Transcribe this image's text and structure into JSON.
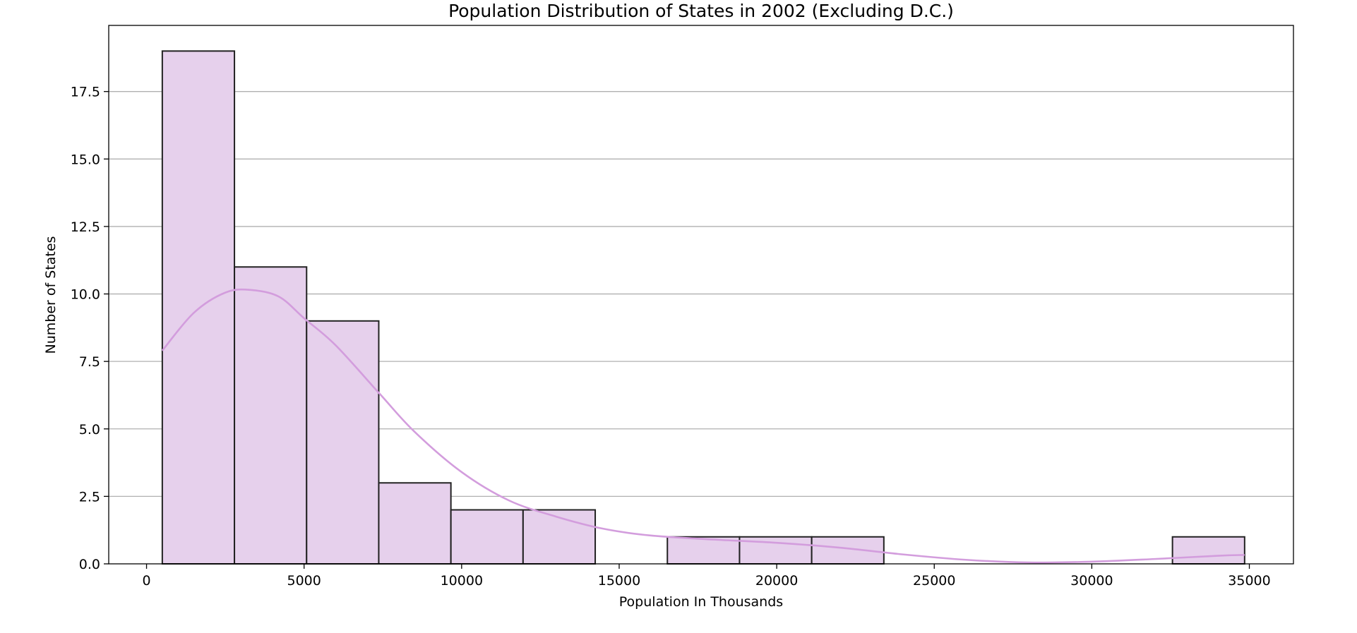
{
  "chart_data": {
    "type": "bar",
    "title": "Population Distribution of States in 2002 (Excluding D.C.)",
    "xlabel": "Population In Thousands",
    "ylabel": "Number of States",
    "xlim": [
      -1200,
      36400
    ],
    "ylim": [
      0,
      19.95
    ],
    "x_ticks": [
      0,
      5000,
      10000,
      15000,
      20000,
      25000,
      30000,
      35000
    ],
    "x_tick_labels": [
      "0",
      "5000",
      "10000",
      "15000",
      "20000",
      "25000",
      "30000",
      "35000"
    ],
    "y_ticks": [
      0,
      2.5,
      5,
      7.5,
      10,
      12.5,
      15,
      17.5
    ],
    "y_tick_labels": [
      "0.0",
      "2.5",
      "5.0",
      "7.5",
      "10.0",
      "12.5",
      "15.0",
      "17.5"
    ],
    "grid": "y",
    "bins": [
      {
        "x0": 500,
        "x1": 2790,
        "count": 19
      },
      {
        "x0": 2790,
        "x1": 5080,
        "count": 11
      },
      {
        "x0": 5080,
        "x1": 7370,
        "count": 9
      },
      {
        "x0": 7370,
        "x1": 9660,
        "count": 3
      },
      {
        "x0": 9660,
        "x1": 11950,
        "count": 2
      },
      {
        "x0": 11950,
        "x1": 14240,
        "count": 2
      },
      {
        "x0": 14240,
        "x1": 16530,
        "count": 0
      },
      {
        "x0": 16530,
        "x1": 18820,
        "count": 1
      },
      {
        "x0": 18820,
        "x1": 21110,
        "count": 1
      },
      {
        "x0": 21110,
        "x1": 23400,
        "count": 1
      },
      {
        "x0": 23400,
        "x1": 25690,
        "count": 0
      },
      {
        "x0": 25690,
        "x1": 27980,
        "count": 0
      },
      {
        "x0": 27980,
        "x1": 30270,
        "count": 0
      },
      {
        "x0": 30270,
        "x1": 32560,
        "count": 0
      },
      {
        "x0": 32560,
        "x1": 34850,
        "count": 1
      }
    ],
    "kde": {
      "x": [
        500,
        1500,
        2500,
        3300,
        4200,
        5000,
        6000,
        7400,
        8500,
        10000,
        11500,
        13000,
        14500,
        16000,
        18000,
        20000,
        22000,
        24000,
        26000,
        28000,
        30000,
        32000,
        34000,
        34850
      ],
      "y": [
        7.9,
        9.3,
        10.05,
        10.15,
        9.9,
        9.1,
        8.1,
        6.3,
        4.9,
        3.4,
        2.35,
        1.75,
        1.3,
        1.05,
        0.9,
        0.78,
        0.6,
        0.35,
        0.15,
        0.05,
        0.08,
        0.18,
        0.3,
        0.33
      ]
    },
    "colors": {
      "bar_fill": "#e6d0ec",
      "bar_edge": "#222222",
      "kde_line": "#d39ddd",
      "grid": "#b0b0b0",
      "axes": "#000000"
    }
  }
}
